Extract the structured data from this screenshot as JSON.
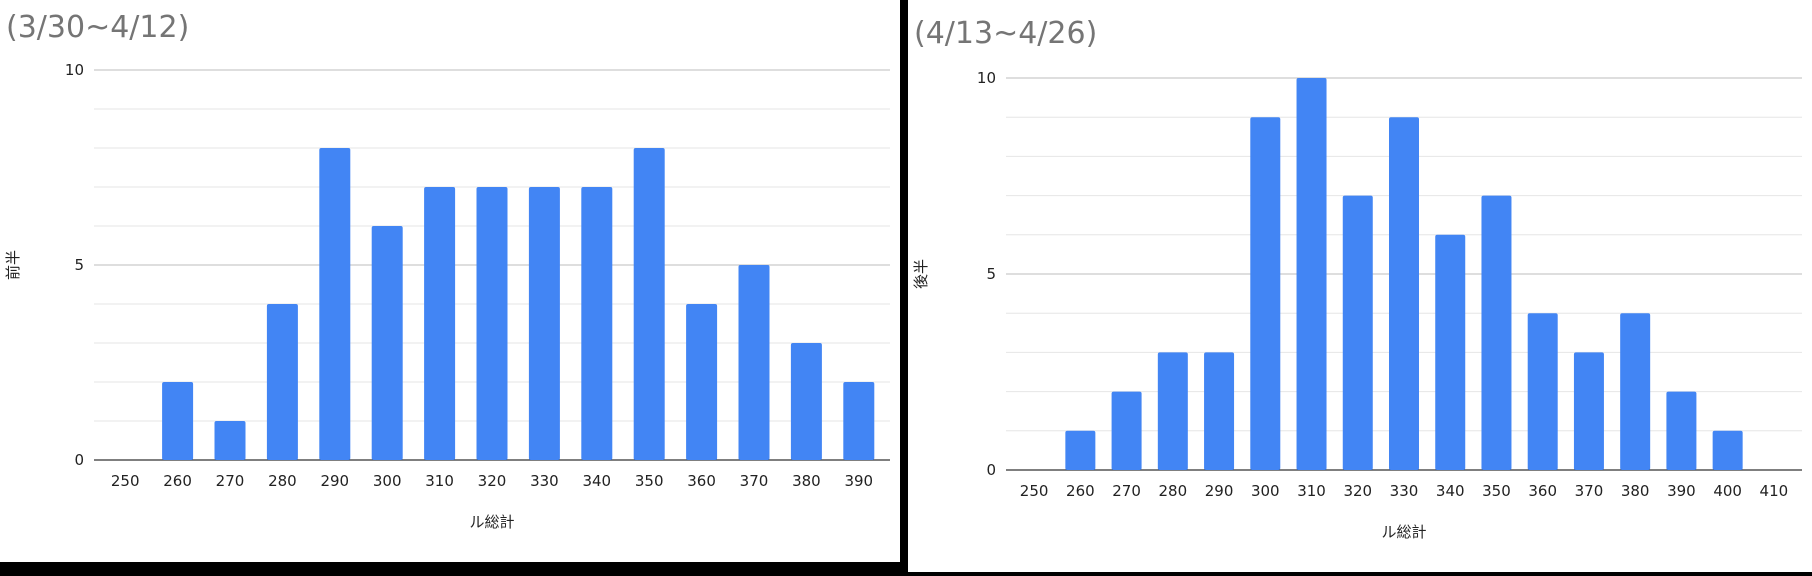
{
  "chart_data": [
    {
      "type": "bar",
      "title": "(3/30~4/12)",
      "xlabel": "ル総計",
      "ylabel": "前半",
      "categories": [
        "250",
        "260",
        "270",
        "280",
        "290",
        "300",
        "310",
        "320",
        "330",
        "340",
        "350",
        "360",
        "370",
        "380",
        "390"
      ],
      "values": [
        0,
        2,
        1,
        4,
        8,
        6,
        7,
        7,
        7,
        7,
        8,
        4,
        5,
        3,
        2
      ],
      "ylim": [
        0,
        10
      ],
      "yticks": [
        "0",
        "5",
        "10"
      ],
      "grid": true,
      "bar_color": "#4285f4"
    },
    {
      "type": "bar",
      "title": "(4/13~4/26)",
      "xlabel": "ル総計",
      "ylabel": "後半",
      "categories": [
        "250",
        "260",
        "270",
        "280",
        "290",
        "300",
        "310",
        "320",
        "330",
        "340",
        "350",
        "360",
        "370",
        "380",
        "390",
        "400",
        "410"
      ],
      "values": [
        0,
        1,
        2,
        3,
        3,
        9,
        10,
        7,
        9,
        6,
        7,
        4,
        3,
        4,
        2,
        1,
        0
      ],
      "ylim": [
        0,
        10
      ],
      "yticks": [
        "0",
        "5",
        "10"
      ],
      "grid": true,
      "bar_color": "#4285f4"
    }
  ]
}
